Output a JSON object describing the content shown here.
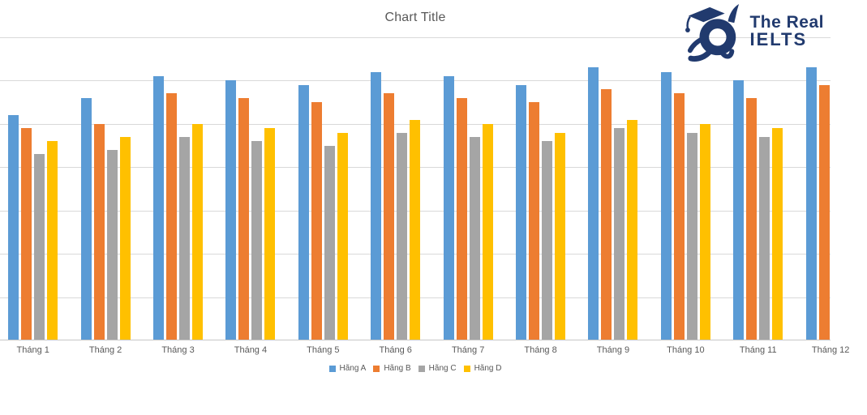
{
  "header": {
    "title": "Chart Title"
  },
  "logo": {
    "line1": "The Real",
    "line2": "IELTS",
    "color": "#213a6e",
    "icon": "graduate-mascot-icon"
  },
  "chart_data": {
    "type": "bar",
    "title": "Chart Title",
    "categories": [
      "Tháng 1",
      "Tháng 2",
      "Tháng 3",
      "Tháng 4",
      "Tháng 5",
      "Tháng 6",
      "Tháng 7",
      "Tháng 8",
      "Tháng 9",
      "Tháng 10",
      "Tháng 11",
      "Tháng 12"
    ],
    "series": [
      {
        "name": "Hãng A",
        "color": "#5b9bd5",
        "values": [
          52,
          56,
          61,
          60,
          59,
          62,
          61,
          59,
          63,
          62,
          60,
          63
        ]
      },
      {
        "name": "Hãng B",
        "color": "#ed7d31",
        "values": [
          49,
          50,
          57,
          56,
          55,
          57,
          56,
          55,
          58,
          57,
          56,
          59
        ]
      },
      {
        "name": "Hãng C",
        "color": "#a5a5a5",
        "values": [
          43,
          44,
          47,
          46,
          45,
          48,
          47,
          46,
          49,
          48,
          47,
          null
        ]
      },
      {
        "name": "Hãng D",
        "color": "#ffc000",
        "values": [
          46,
          47,
          50,
          49,
          48,
          51,
          50,
          48,
          51,
          50,
          49,
          null
        ]
      }
    ],
    "ylim": [
      0,
      70
    ],
    "gridline_step": 10,
    "grid": true,
    "legend_position": "bottom",
    "axis_text_color": "#595959",
    "gridline_color": "#d9d9d9",
    "notes": "chart cropped at left (value axis hidden) and right (Tháng 12 partially visible)"
  }
}
